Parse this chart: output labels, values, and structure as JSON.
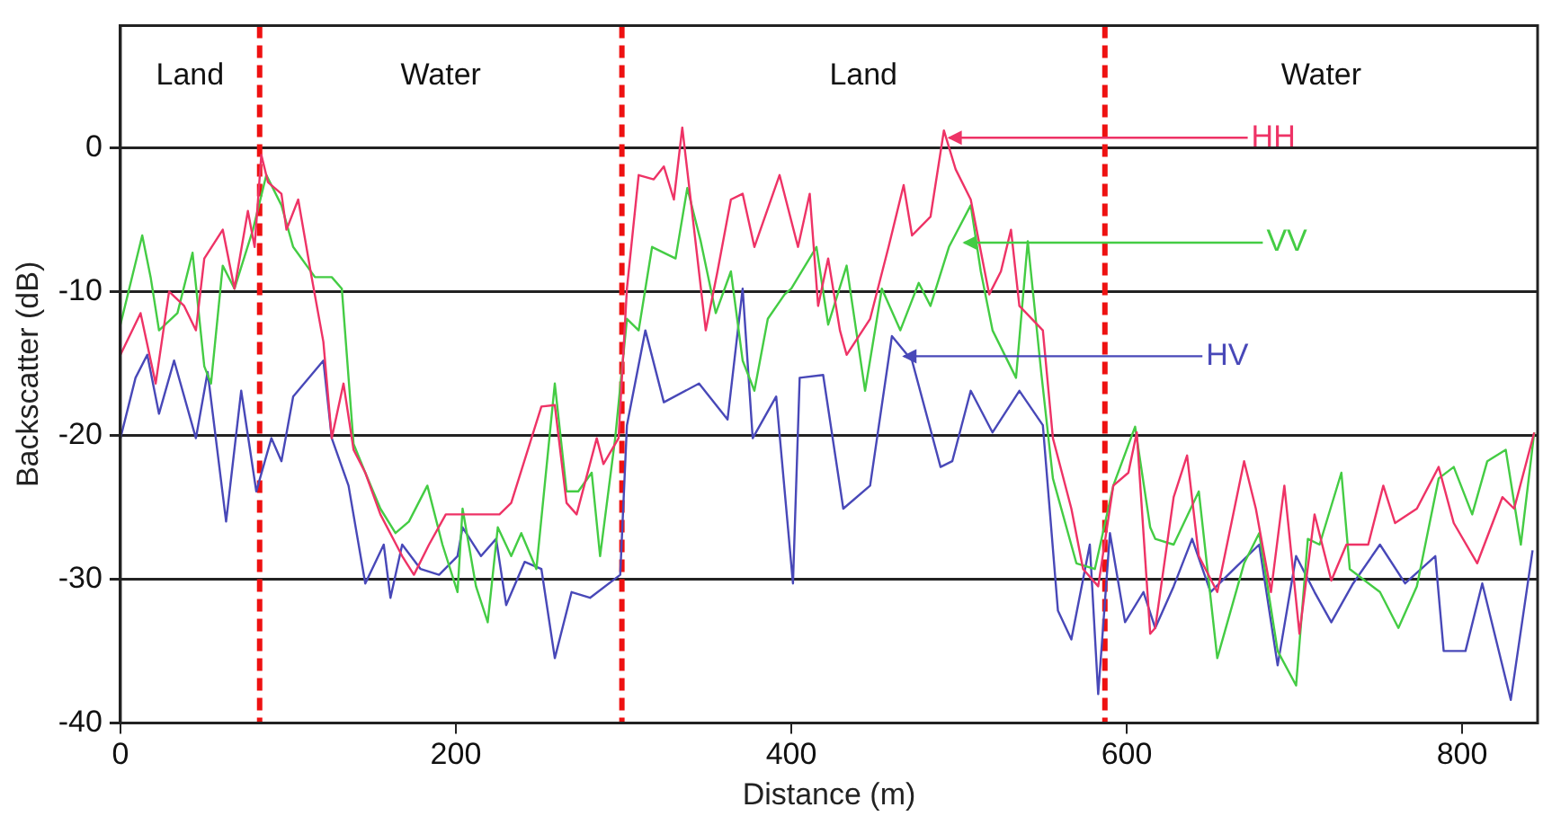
{
  "chart_data": {
    "type": "line",
    "xlabel": "Distance (m)",
    "ylabel": "Backscatter (dB)",
    "xlim": [
      0,
      845
    ],
    "xticks": [
      0,
      200,
      400,
      600,
      800
    ],
    "ylim": [
      -40,
      8.5
    ],
    "yticks": [
      -40,
      -30,
      -20,
      -10,
      0
    ],
    "grid": "y",
    "legend": false,
    "marker": "none",
    "line_style": "solid",
    "series": [
      {
        "color": "#ee3366",
        "x": [
          0,
          12,
          21,
          29,
          38,
          45,
          50,
          61,
          68,
          76,
          80,
          84,
          88,
          96,
          99,
          106,
          114,
          121,
          126,
          133,
          139,
          146,
          155,
          168,
          175,
          184,
          194,
          208,
          226,
          233,
          251,
          259,
          266,
          272,
          284,
          288,
          297,
          302,
          309,
          318,
          324,
          330,
          335,
          340,
          349,
          356,
          364,
          371,
          378,
          393,
          404,
          411,
          416,
          422,
          429,
          433,
          447,
          458,
          467,
          472,
          483,
          491,
          498,
          507,
          518,
          525,
          531,
          536,
          550,
          556,
          567,
          574,
          583,
          592,
          601,
          606,
          614,
          617,
          628,
          636,
          643,
          654,
          670,
          677,
          686,
          694,
          703,
          712,
          722,
          731,
          744,
          753,
          760,
          773,
          786,
          795,
          809,
          824,
          831,
          843
        ],
        "values": [
          -14.4,
          -11.5,
          -16.4,
          -10,
          -11,
          -12.7,
          -7.7,
          -5.7,
          -9.8,
          -4.4,
          -6.9,
          -0.5,
          -2.4,
          -3.2,
          -5.7,
          -3.6,
          -9,
          -13.5,
          -20.2,
          -16.4,
          -21,
          -22.6,
          -25.5,
          -28.4,
          -29.7,
          -27.6,
          -25.5,
          -25.5,
          -25.5,
          -24.7,
          -18,
          -17.9,
          -24.7,
          -25.5,
          -20.2,
          -22,
          -20.2,
          -9.8,
          -1.9,
          -2.2,
          -1.3,
          -3.6,
          1.4,
          -3.6,
          -12.7,
          -8.6,
          -3.6,
          -3.2,
          -6.9,
          -1.9,
          -6.9,
          -3.2,
          -11,
          -7.7,
          -12.7,
          -14.4,
          -11.9,
          -6.9,
          -2.6,
          -6.1,
          -4.8,
          1.2,
          -1.5,
          -3.6,
          -10.2,
          -8.6,
          -5.7,
          -11,
          -12.7,
          -20.2,
          -25.1,
          -29.3,
          -30.5,
          -23.5,
          -22.6,
          -19.8,
          -33.8,
          -33.4,
          -24.3,
          -21.4,
          -28.4,
          -30.9,
          -21.8,
          -25.1,
          -30.9,
          -23.5,
          -33.8,
          -25.5,
          -30.1,
          -27.6,
          -27.6,
          -23.5,
          -26.1,
          -25.1,
          -22.2,
          -26.1,
          -28.9,
          -24.3,
          -25.1,
          -19.8
        ]
      },
      {
        "color": "#44cc44",
        "x": [
          0,
          13,
          18,
          23,
          34,
          43,
          50,
          54,
          61,
          68,
          79,
          87,
          96,
          103,
          116,
          126,
          132,
          139,
          146,
          155,
          164,
          172,
          183,
          192,
          201,
          204,
          212,
          219,
          225,
          233,
          239,
          248,
          259,
          266,
          273,
          281,
          286,
          295,
          302,
          309,
          317,
          331,
          338,
          346,
          355,
          364,
          371,
          378,
          386,
          396,
          400,
          415,
          422,
          433,
          444,
          454,
          465,
          476,
          483,
          494,
          507,
          513,
          520,
          534,
          541,
          549,
          556,
          570,
          581,
          592,
          605,
          614,
          617,
          628,
          643,
          654,
          670,
          679,
          690,
          701,
          708,
          715,
          728,
          733,
          751,
          762,
          773,
          786,
          795,
          806,
          815,
          826,
          835,
          843
        ],
        "values": [
          -12.3,
          -6.1,
          -9,
          -12.7,
          -11.5,
          -7.3,
          -15.2,
          -16.4,
          -8.2,
          -9.8,
          -5.7,
          -1.9,
          -4,
          -6.9,
          -9,
          -9,
          -9.8,
          -20.6,
          -22.6,
          -25.1,
          -26.8,
          -26,
          -23.5,
          -27.6,
          -30.9,
          -25.1,
          -30.5,
          -33,
          -26.4,
          -28.4,
          -26.8,
          -29.3,
          -16.4,
          -23.9,
          -23.9,
          -22.6,
          -28.4,
          -20.2,
          -11.9,
          -12.7,
          -6.9,
          -7.7,
          -2.8,
          -6.5,
          -11.5,
          -8.6,
          -14.8,
          -16.9,
          -11.9,
          -10.2,
          -9.8,
          -6.9,
          -12.3,
          -8.2,
          -16.9,
          -9.8,
          -12.7,
          -9.4,
          -11,
          -6.9,
          -4,
          -8.6,
          -12.7,
          -16,
          -6.5,
          -15.6,
          -23,
          -28.9,
          -29.3,
          -23.5,
          -19.4,
          -26.4,
          -27.2,
          -27.6,
          -23.9,
          -35.5,
          -28.9,
          -26.8,
          -35,
          -37.4,
          -27.2,
          -27.6,
          -22.6,
          -29.3,
          -30.9,
          -33.4,
          -30.5,
          -23,
          -22.2,
          -25.5,
          -21.8,
          -21,
          -27.6,
          -19.8
        ]
      },
      {
        "color": "#4848b8",
        "x": [
          0,
          9,
          16,
          23,
          32,
          45,
          52,
          63,
          72,
          81,
          90,
          96,
          103,
          121,
          126,
          136,
          146,
          157,
          161,
          168,
          179,
          190,
          201,
          204,
          215,
          224,
          230,
          241,
          251,
          259,
          269,
          280,
          298,
          302,
          313,
          324,
          345,
          362,
          371,
          377,
          391,
          401,
          405,
          419,
          431,
          447,
          460,
          472,
          489,
          496,
          507,
          520,
          536,
          550,
          559,
          567,
          578,
          583,
          590,
          599,
          610,
          617,
          628,
          639,
          650,
          664,
          679,
          690,
          701,
          712,
          722,
          735,
          751,
          766,
          784,
          789,
          802,
          812,
          829,
          842
        ],
        "values": [
          -20.2,
          -16,
          -14.4,
          -18.5,
          -14.8,
          -20.2,
          -15.6,
          -26,
          -16.9,
          -23.9,
          -20.2,
          -21.8,
          -17.3,
          -14.8,
          -20.2,
          -23.5,
          -30.3,
          -27.6,
          -31.3,
          -27.6,
          -29.3,
          -29.7,
          -28.4,
          -26.4,
          -28.4,
          -27.2,
          -31.8,
          -28.8,
          -29.3,
          -35.5,
          -30.9,
          -31.3,
          -29.7,
          -19.3,
          -12.7,
          -17.7,
          -16.4,
          -18.9,
          -9.8,
          -20.2,
          -17.3,
          -30.3,
          -16,
          -15.8,
          -25.1,
          -23.5,
          -13.1,
          -14.8,
          -22.2,
          -21.8,
          -16.9,
          -19.8,
          -16.9,
          -19.3,
          -32.2,
          -34.2,
          -27.6,
          -38,
          -26.8,
          -33,
          -30.9,
          -33.4,
          -30.5,
          -27.2,
          -30.9,
          -29.3,
          -27.6,
          -36,
          -28.4,
          -30.9,
          -33,
          -30.3,
          -27.6,
          -30.3,
          -28.4,
          -35,
          -35,
          -30.3,
          -38.4,
          -28
        ]
      }
    ],
    "ref_lines": [
      {
        "axis": "x",
        "value": 83,
        "color": "#ee1111",
        "line_style": "dashed"
      },
      {
        "axis": "x",
        "value": 299,
        "color": "#ee1111",
        "line_style": "dashed"
      },
      {
        "axis": "x",
        "value": 587,
        "color": "#ee1111",
        "line_style": "dashed"
      }
    ],
    "annotations": [
      {
        "text": "HH",
        "x": 492,
        "y": 0.7
      },
      {
        "text": "VV",
        "x": 501,
        "y": -6.6
      },
      {
        "text": "HV",
        "x": 465,
        "y": -14.5
      },
      "Land",
      "Water",
      "Land",
      "Water"
    ]
  }
}
